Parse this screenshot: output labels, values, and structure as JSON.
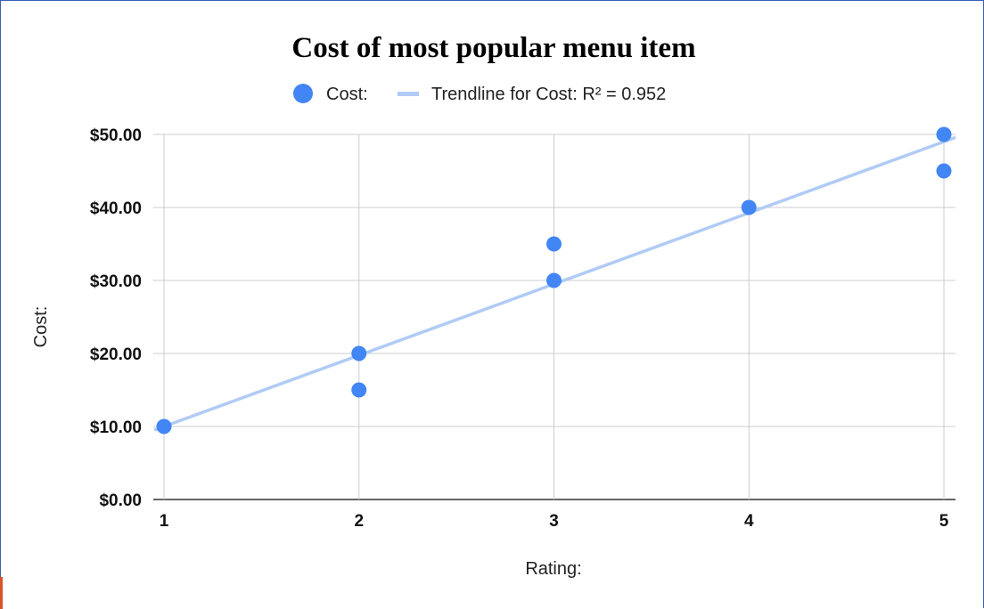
{
  "chart_data": {
    "type": "scatter",
    "title": "Cost of most popular menu item",
    "xlabel": "Rating:",
    "ylabel": "Cost:",
    "xlim": [
      1,
      5
    ],
    "ylim": [
      0,
      50
    ],
    "x_ticks": [
      "1",
      "2",
      "3",
      "4",
      "5"
    ],
    "y_ticks": [
      "$0.00",
      "$10.00",
      "$20.00",
      "$30.00",
      "$40.00",
      "$50.00"
    ],
    "grid": true,
    "legend_position": "top",
    "series": [
      {
        "name": "Cost:",
        "color": "#4285f4",
        "points": [
          {
            "x": 1,
            "y": 10
          },
          {
            "x": 2,
            "y": 20
          },
          {
            "x": 2,
            "y": 15
          },
          {
            "x": 3,
            "y": 35
          },
          {
            "x": 3,
            "y": 30
          },
          {
            "x": 4,
            "y": 40
          },
          {
            "x": 5,
            "y": 50
          },
          {
            "x": 5,
            "y": 45
          }
        ]
      }
    ],
    "trendline": {
      "name": "Trendline for Cost: R² = 0.952",
      "color": "#b0cbf5",
      "start": {
        "x": 1,
        "y": 10
      },
      "end": {
        "x": 5,
        "y": 49
      }
    }
  }
}
